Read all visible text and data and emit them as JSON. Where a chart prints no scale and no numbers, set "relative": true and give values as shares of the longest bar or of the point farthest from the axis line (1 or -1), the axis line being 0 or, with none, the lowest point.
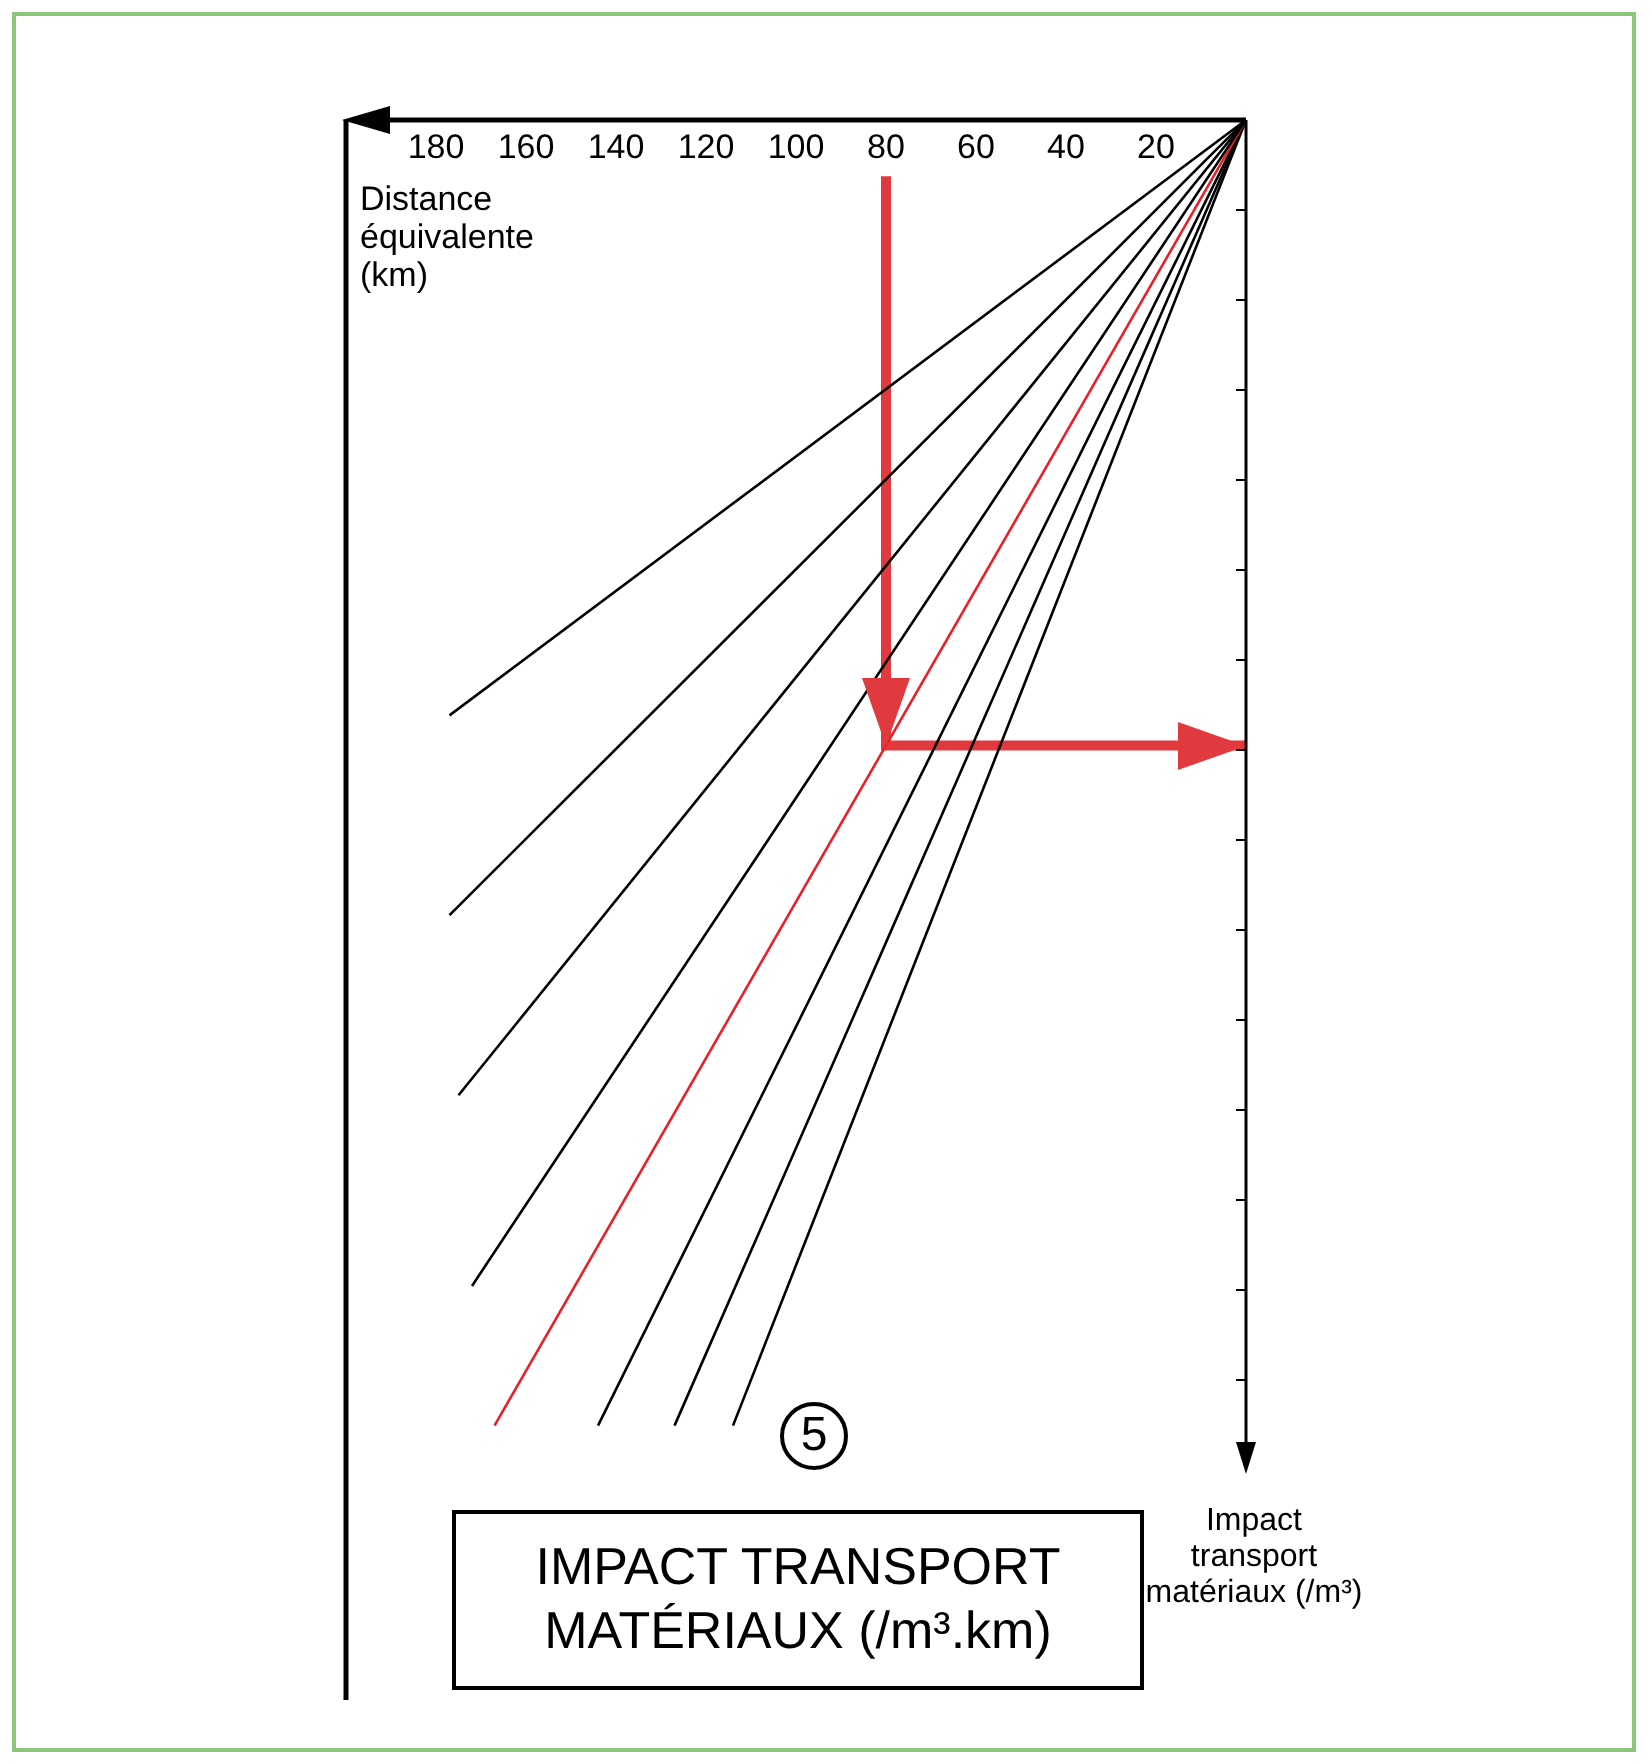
{
  "chart_data": {
    "type": "line",
    "title": "IMPACT TRANSPORT MATÉRIAUX (/m³.km)",
    "xlabel": "Distance équivalente (km)",
    "ylabel": "Impact transport matériaux (/m³)",
    "annotations": [
      "5"
    ],
    "relative": true,
    "xlim": [
      200,
      0
    ],
    "xticks": [
      180,
      160,
      140,
      120,
      100,
      80,
      60,
      40,
      20
    ],
    "legend": false,
    "marker": "none",
    "line_style": "solid",
    "series": [
      {
        "color": "#000000",
        "x": [
          0,
          177
        ],
        "values": [
          0,
          -0.456
        ]
      },
      {
        "color": "#000000",
        "x": [
          0,
          177
        ],
        "values": [
          0,
          -0.609
        ]
      },
      {
        "color": "#000000",
        "x": [
          0,
          175
        ],
        "values": [
          0,
          -0.747
        ]
      },
      {
        "color": "#000000",
        "x": [
          0,
          172
        ],
        "values": [
          0,
          -0.893
        ]
      },
      {
        "color": "#e8202a",
        "x": [
          0,
          167
        ],
        "values": [
          0,
          -1
        ]
      },
      {
        "color": "#000000",
        "x": [
          0,
          144
        ],
        "values": [
          0,
          -1
        ]
      },
      {
        "color": "#000000",
        "x": [
          0,
          127
        ],
        "values": [
          0,
          -1
        ]
      },
      {
        "color": "#000000",
        "x": [
          0,
          114
        ],
        "values": [
          0,
          -1
        ]
      },
      {
        "type": "line",
        "color": "#e0393e",
        "x": [
          80,
          80,
          0
        ],
        "values": [
          -0.043,
          -0.479,
          -0.479
        ]
      }
    ]
  }
}
